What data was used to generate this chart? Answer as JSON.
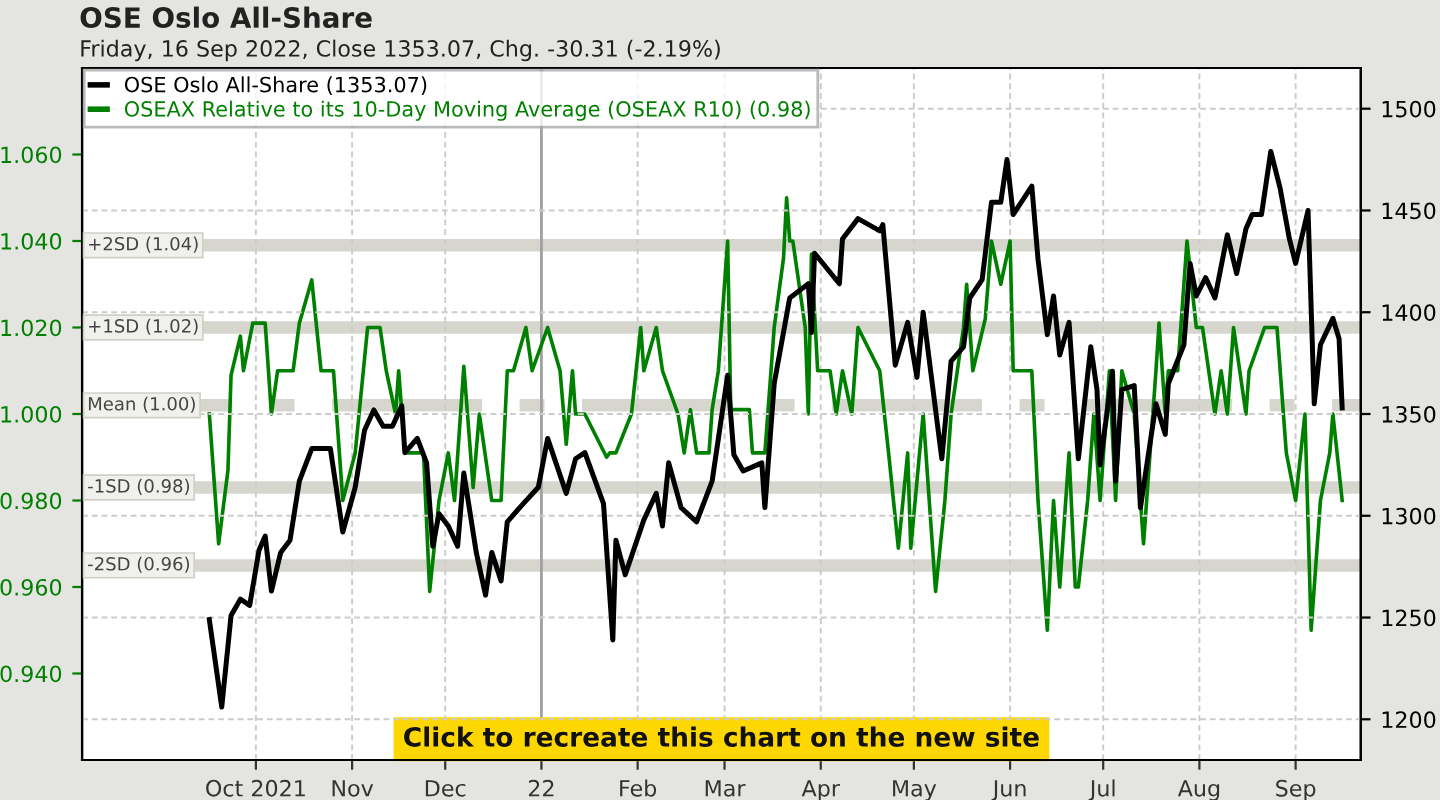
{
  "chart_data": {
    "type": "line",
    "title": "OSE Oslo All-Share",
    "subtitle": "Friday, 16 Sep 2022, Close 1353.07, Chg. -30.31 (-2.19%)",
    "legend": "top left",
    "grid": true,
    "xlim": [
      "2021-08-06",
      "2022-09-22"
    ],
    "xticks": [
      {
        "value": "2021-10-01",
        "label": "Oct 2021"
      },
      {
        "value": "2021-11-01",
        "label": "Nov"
      },
      {
        "value": "2021-12-01",
        "label": "Dec"
      },
      {
        "value": "2022-01-01",
        "label": "22"
      },
      {
        "value": "2022-02-01",
        "label": "Feb"
      },
      {
        "value": "2022-03-01",
        "label": "Mar"
      },
      {
        "value": "2022-04-01",
        "label": "Apr"
      },
      {
        "value": "2022-05-01",
        "label": "May"
      },
      {
        "value": "2022-06-01",
        "label": "Jun"
      },
      {
        "value": "2022-07-01",
        "label": "Jul"
      },
      {
        "value": "2022-08-01",
        "label": "Aug"
      },
      {
        "value": "2022-09-01",
        "label": "Sep"
      }
    ],
    "ylim": [
      0.92,
      1.08
    ],
    "yticks": [
      {
        "value": 0.94,
        "label": "0.940"
      },
      {
        "value": 0.96,
        "label": "0.960"
      },
      {
        "value": 0.98,
        "label": "0.980"
      },
      {
        "value": 1.0,
        "label": "1.000"
      },
      {
        "value": 1.02,
        "label": "1.020"
      },
      {
        "value": 1.04,
        "label": "1.040"
      },
      {
        "value": 1.06,
        "label": "1.060"
      }
    ],
    "y2lim": [
      1180,
      1520
    ],
    "y2ticks": [
      1200,
      1250,
      1300,
      1350,
      1400,
      1450,
      1500
    ],
    "ref_lines": [
      {
        "axis": "y",
        "value": 1.039,
        "label": "+2SD (1.04)",
        "color": "#d6d6ce",
        "line_style": "solid"
      },
      {
        "axis": "y",
        "value": 1.02,
        "label": "+1SD (1.02)",
        "color": "#d6d6ce",
        "line_style": "solid"
      },
      {
        "axis": "y",
        "value": 1.002,
        "label": "Mean (1.00)",
        "color": "#d6d6ce",
        "line_style": "dashdot"
      },
      {
        "axis": "y",
        "value": 0.983,
        "label": "-1SD (0.98)",
        "color": "#d6d6ce",
        "line_style": "solid"
      },
      {
        "axis": "y",
        "value": 0.965,
        "label": "-2SD (0.96)",
        "color": "#d6d6ce",
        "line_style": "solid"
      },
      {
        "axis": "x",
        "value": "2022-01-01",
        "color": "#a0a0a0",
        "line_style": "solid"
      }
    ],
    "annotations": [
      "Click to recreate this chart on the new site"
    ],
    "series": [
      {
        "name": "OSEAX Relative to its 10-Day Moving Average (OSEAX R10) (0.98)",
        "color": "#008000",
        "axis": "y",
        "x": [
          "2021-09-16",
          "2021-09-19",
          "2021-09-22",
          "2021-09-23",
          "2021-09-26",
          "2021-09-27",
          "2021-09-30",
          "2021-10-04",
          "2021-10-06",
          "2021-10-08",
          "2021-10-13",
          "2021-10-15",
          "2021-10-19",
          "2021-10-22",
          "2021-10-26",
          "2021-10-29",
          "2021-11-02",
          "2021-11-06",
          "2021-11-10",
          "2021-11-12",
          "2021-11-15",
          "2021-11-16",
          "2021-11-18",
          "2021-11-24",
          "2021-11-26",
          "2021-11-29",
          "2021-12-02",
          "2021-12-04",
          "2021-12-07",
          "2021-12-10",
          "2021-12-12",
          "2021-12-16",
          "2021-12-19",
          "2021-12-21",
          "2021-12-23",
          "2021-12-27",
          "2021-12-29",
          "2022-01-03",
          "2022-01-07",
          "2022-01-09",
          "2022-01-11",
          "2022-01-12",
          "2022-01-15",
          "2022-01-22",
          "2022-01-23",
          "2022-01-25",
          "2022-01-30",
          "2022-02-02",
          "2022-02-03",
          "2022-02-07",
          "2022-02-09",
          "2022-02-14",
          "2022-02-16",
          "2022-02-18",
          "2022-02-20",
          "2022-02-24",
          "2022-02-25",
          "2022-02-27",
          "2022-03-02",
          "2022-03-03",
          "2022-03-09",
          "2022-03-10",
          "2022-03-14",
          "2022-03-17",
          "2022-03-20",
          "2022-03-21",
          "2022-03-22",
          "2022-03-23",
          "2022-03-27",
          "2022-03-28",
          "2022-03-29",
          "2022-03-31",
          "2022-04-04",
          "2022-04-06",
          "2022-04-08",
          "2022-04-11",
          "2022-04-13",
          "2022-04-20",
          "2022-04-23",
          "2022-04-26",
          "2022-04-29",
          "2022-04-30",
          "2022-05-04",
          "2022-05-08",
          "2022-05-11",
          "2022-05-13",
          "2022-05-15",
          "2022-05-17",
          "2022-05-18",
          "2022-05-20",
          "2022-05-24",
          "2022-05-26",
          "2022-05-29",
          "2022-06-01",
          "2022-06-02",
          "2022-06-08",
          "2022-06-10",
          "2022-06-13",
          "2022-06-15",
          "2022-06-17",
          "2022-06-20",
          "2022-06-22",
          "2022-06-23",
          "2022-06-26",
          "2022-06-28",
          "2022-06-30",
          "2022-07-03",
          "2022-07-05",
          "2022-07-07",
          "2022-07-11",
          "2022-07-14",
          "2022-07-18",
          "2022-07-19",
          "2022-07-21",
          "2022-07-22",
          "2022-07-25",
          "2022-07-28",
          "2022-07-31",
          "2022-08-02",
          "2022-08-04",
          "2022-08-06",
          "2022-08-08",
          "2022-08-10",
          "2022-08-12",
          "2022-08-14",
          "2022-08-16",
          "2022-08-17",
          "2022-08-22",
          "2022-08-26",
          "2022-08-29",
          "2022-09-01",
          "2022-09-04",
          "2022-09-06",
          "2022-09-09",
          "2022-09-12",
          "2022-09-13",
          "2022-09-16"
        ],
        "values": [
          1.0,
          0.97,
          0.987,
          1.009,
          1.018,
          1.01,
          1.021,
          1.021,
          1.0,
          1.01,
          1.01,
          1.021,
          1.031,
          1.01,
          1.01,
          0.98,
          0.991,
          1.02,
          1.02,
          1.01,
          1.0,
          1.01,
          0.991,
          0.991,
          0.959,
          0.98,
          0.991,
          0.98,
          1.011,
          0.983,
          1.0,
          0.98,
          0.98,
          1.01,
          1.01,
          1.02,
          1.01,
          1.02,
          1.01,
          0.993,
          1.01,
          1.0,
          1.0,
          0.99,
          0.991,
          0.991,
          1.0,
          1.02,
          1.01,
          1.02,
          1.01,
          1.0,
          0.991,
          1.001,
          0.991,
          0.991,
          1.001,
          1.01,
          1.04,
          1.001,
          1.001,
          0.991,
          0.991,
          1.02,
          1.036,
          1.05,
          1.04,
          1.04,
          1.02,
          1.0,
          1.037,
          1.01,
          1.01,
          1.0,
          1.01,
          1.0,
          1.02,
          1.01,
          0.99,
          0.969,
          0.991,
          0.969,
          1.0,
          0.959,
          0.98,
          1.0,
          1.01,
          1.02,
          1.03,
          1.01,
          1.022,
          1.04,
          1.03,
          1.04,
          1.01,
          1.01,
          0.98,
          0.95,
          0.98,
          0.96,
          0.991,
          0.96,
          0.96,
          0.98,
          1.0,
          0.98,
          1.01,
          0.98,
          1.01,
          1.0,
          0.97,
          1.01,
          1.021,
          1.0,
          1.01,
          1.01,
          1.04,
          1.02,
          1.02,
          1.01,
          1.0,
          1.01,
          1.0,
          1.02,
          1.01,
          1.0,
          1.01,
          1.02,
          1.02,
          0.991,
          0.98,
          1.0,
          0.95,
          0.98,
          0.991,
          1.0,
          0.98
        ]
      },
      {
        "name": "OSE Oslo All-Share (1353.07)",
        "color": "#000000",
        "axis": "y2",
        "x": [
          "2021-09-16",
          "2021-09-20",
          "2021-09-23",
          "2021-09-26",
          "2021-09-29",
          "2021-10-02",
          "2021-10-04",
          "2021-10-06",
          "2021-10-09",
          "2021-10-12",
          "2021-10-15",
          "2021-10-19",
          "2021-10-25",
          "2021-10-29",
          "2021-11-02",
          "2021-11-05",
          "2021-11-08",
          "2021-11-11",
          "2021-11-14",
          "2021-11-17",
          "2021-11-18",
          "2021-11-22",
          "2021-11-25",
          "2021-11-27",
          "2021-11-29",
          "2021-12-02",
          "2021-12-05",
          "2021-12-07",
          "2021-12-11",
          "2021-12-14",
          "2021-12-16",
          "2021-12-19",
          "2021-12-21",
          "2021-12-25",
          "2021-12-31",
          "2022-01-03",
          "2022-01-09",
          "2022-01-12",
          "2022-01-15",
          "2022-01-21",
          "2022-01-24",
          "2022-01-25",
          "2022-01-28",
          "2022-02-03",
          "2022-02-07",
          "2022-02-09",
          "2022-02-11",
          "2022-02-15",
          "2022-02-20",
          "2022-02-25",
          "2022-03-02",
          "2022-03-04",
          "2022-03-07",
          "2022-03-13",
          "2022-03-14",
          "2022-03-17",
          "2022-03-22",
          "2022-03-28",
          "2022-03-29",
          "2022-03-30",
          "2022-04-07",
          "2022-04-08",
          "2022-04-13",
          "2022-04-20",
          "2022-04-21",
          "2022-04-25",
          "2022-04-29",
          "2022-05-02",
          "2022-05-04",
          "2022-05-10",
          "2022-05-13",
          "2022-05-17",
          "2022-05-19",
          "2022-05-23",
          "2022-05-26",
          "2022-05-29",
          "2022-05-31",
          "2022-06-02",
          "2022-06-08",
          "2022-06-10",
          "2022-06-13",
          "2022-06-15",
          "2022-06-17",
          "2022-06-20",
          "2022-06-23",
          "2022-06-27",
          "2022-06-29",
          "2022-06-30",
          "2022-07-04",
          "2022-07-05",
          "2022-07-07",
          "2022-07-11",
          "2022-07-13",
          "2022-07-18",
          "2022-07-21",
          "2022-07-22",
          "2022-07-27",
          "2022-07-29",
          "2022-07-31",
          "2022-08-03",
          "2022-08-06",
          "2022-08-10",
          "2022-08-13",
          "2022-08-16",
          "2022-08-18",
          "2022-08-21",
          "2022-08-24",
          "2022-08-27",
          "2022-08-30",
          "2022-09-01",
          "2022-09-05",
          "2022-09-07",
          "2022-09-09",
          "2022-09-13",
          "2022-09-15",
          "2022-09-16"
        ],
        "values": [
          1249,
          1206,
          1251,
          1259,
          1256,
          1283,
          1290,
          1263,
          1282,
          1288,
          1317,
          1333,
          1333,
          1292,
          1314,
          1342,
          1352,
          1344,
          1344,
          1354,
          1331,
          1338,
          1326,
          1285,
          1301,
          1295,
          1285,
          1321,
          1282,
          1261,
          1282,
          1268,
          1297,
          1304,
          1314,
          1338,
          1311,
          1328,
          1331,
          1306,
          1239,
          1288,
          1271,
          1298,
          1311,
          1295,
          1326,
          1304,
          1297,
          1317,
          1369,
          1330,
          1322,
          1326,
          1304,
          1365,
          1407,
          1414,
          1390,
          1429,
          1414,
          1436,
          1446,
          1440,
          1443,
          1374,
          1395,
          1368,
          1400,
          1328,
          1376,
          1383,
          1407,
          1416,
          1454,
          1454,
          1475,
          1448,
          1462,
          1426,
          1389,
          1408,
          1379,
          1395,
          1328,
          1383,
          1362,
          1325,
          1371,
          1317,
          1362,
          1364,
          1304,
          1355,
          1340,
          1365,
          1384,
          1424,
          1408,
          1417,
          1407,
          1438,
          1419,
          1441,
          1448,
          1448,
          1479,
          1461,
          1436,
          1424,
          1450,
          1355,
          1384,
          1397,
          1387,
          1353
        ]
      }
    ]
  }
}
